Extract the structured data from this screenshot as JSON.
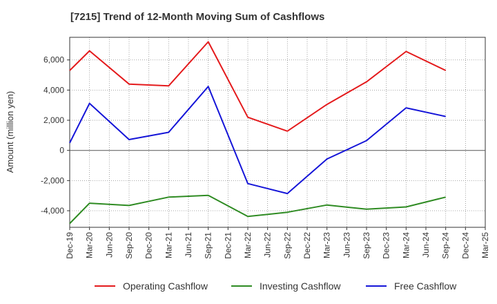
{
  "chart_data": {
    "type": "line",
    "title": "[7215]  Trend of 12-Month Moving Sum of Cashflows",
    "xlabel": "",
    "ylabel": "Amount (million yen)",
    "categories": [
      "Dec-19",
      "Mar-20",
      "Jun-20",
      "Sep-20",
      "Dec-20",
      "Mar-21",
      "Jun-21",
      "Sep-21",
      "Dec-21",
      "Mar-22",
      "Jun-22",
      "Sep-22",
      "Dec-22",
      "Mar-23",
      "Jun-23",
      "Sep-23",
      "Dec-23",
      "Mar-24",
      "Jun-24",
      "Sep-24",
      "Dec-24",
      "Mar-25"
    ],
    "ylim": [
      -5100,
      7500
    ],
    "yticks": [
      6000,
      4000,
      2000,
      0,
      -2000,
      -4000
    ],
    "ytick_labels": [
      "6,000",
      "4,000",
      "2,000",
      "0",
      "-2,000",
      "-4,000"
    ],
    "grid": true,
    "legend_position": "bottom",
    "series": [
      {
        "name": "Operating Cashflow",
        "color": "#e41a1c",
        "values": [
          5300,
          6600,
          null,
          4400,
          null,
          4280,
          null,
          7200,
          null,
          2200,
          null,
          1280,
          null,
          3050,
          null,
          4550,
          null,
          6560,
          null,
          5300,
          null,
          null
        ]
      },
      {
        "name": "Investing Cashflow",
        "color": "#2e8b22",
        "values": [
          -4850,
          -3500,
          null,
          -3650,
          null,
          -3100,
          null,
          -2980,
          null,
          -4380,
          null,
          -4100,
          null,
          -3620,
          null,
          -3900,
          null,
          -3750,
          null,
          -3100,
          null,
          null
        ]
      },
      {
        "name": "Free Cashflow",
        "color": "#1515d8",
        "values": [
          500,
          3120,
          null,
          720,
          null,
          1200,
          null,
          4240,
          null,
          -2200,
          null,
          -2860,
          null,
          -570,
          null,
          650,
          null,
          2820,
          null,
          2250,
          null,
          null
        ]
      }
    ]
  }
}
